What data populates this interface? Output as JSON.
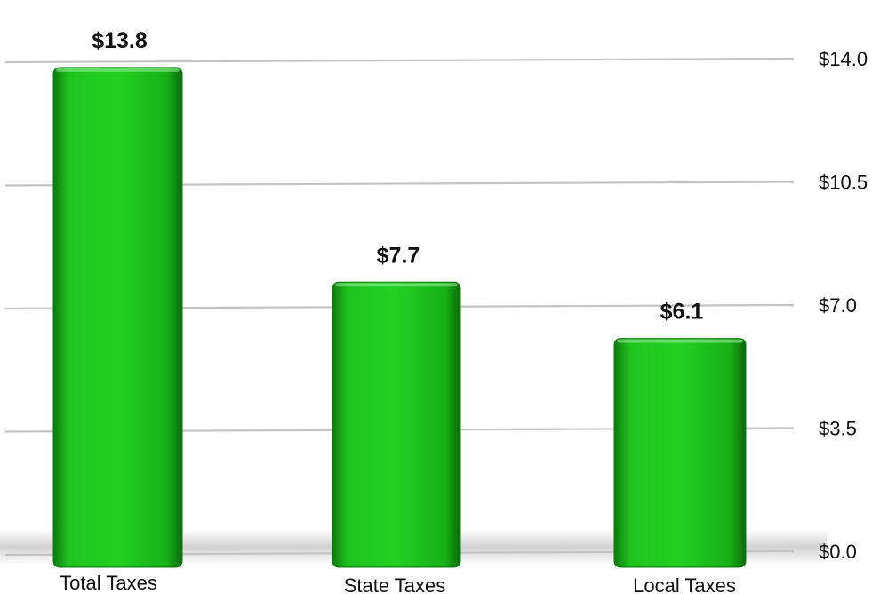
{
  "chart_data": {
    "type": "bar",
    "categories": [
      "Total Taxes",
      "State Taxes",
      "Local Taxes"
    ],
    "values": [
      13.8,
      7.7,
      6.1
    ],
    "data_labels": [
      "$13.8",
      "$7.7",
      "$6.1"
    ],
    "yticks": [
      0,
      3.5,
      7,
      10.5,
      14
    ],
    "ytick_labels": [
      "$0.0",
      "$3.5",
      "$7.0",
      "$10.5",
      "$14.0"
    ],
    "ylim": [
      0,
      14
    ],
    "grid": true,
    "yaxis_position": "right",
    "bar_color": "#1fc41f"
  }
}
